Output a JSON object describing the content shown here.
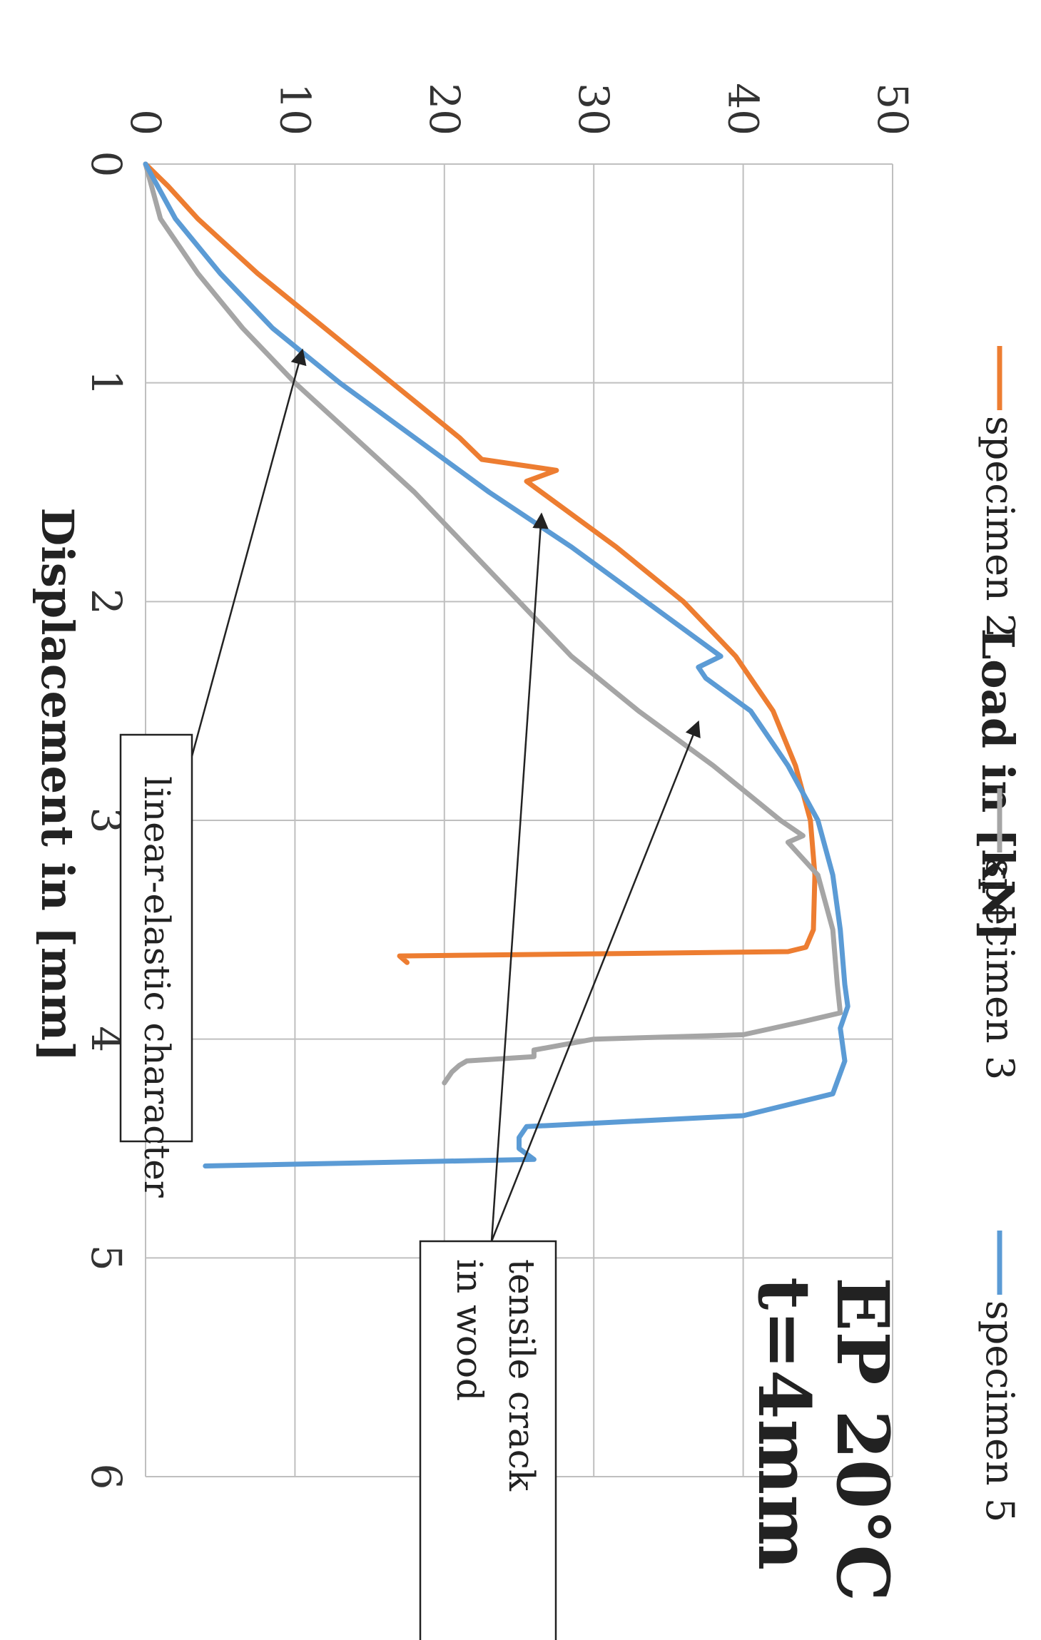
{
  "chart_data": {
    "type": "line",
    "title": "EP 20°C",
    "subtitle": "t=4mm",
    "xlabel": "Displacement in [mm]",
    "ylabel": "Load in [kN]",
    "xlim": [
      0,
      6
    ],
    "ylim": [
      0,
      50
    ],
    "x_ticks": [
      "0",
      "1",
      "2",
      "3",
      "4",
      "5",
      "6"
    ],
    "y_ticks": [
      "0",
      "10",
      "20",
      "30",
      "40",
      "50"
    ],
    "grid": true,
    "legend_position": "top",
    "series": [
      {
        "name": "specimen 2",
        "color": "#ED7D31",
        "x": [
          0,
          0.1,
          0.25,
          0.5,
          0.75,
          1.0,
          1.25,
          1.35,
          1.4,
          1.45,
          1.5,
          1.75,
          2.0,
          2.25,
          2.5,
          2.75,
          3.0,
          3.25,
          3.5,
          3.58,
          3.6,
          3.61,
          3.62,
          3.65
        ],
        "values": [
          0,
          1.5,
          3.5,
          7.5,
          12,
          16.5,
          21,
          22.5,
          27.5,
          25.5,
          26.5,
          31.5,
          36,
          39.5,
          42,
          43.5,
          44.5,
          44.8,
          44.7,
          44.2,
          43,
          30,
          17,
          17.5
        ]
      },
      {
        "name": "specimen 3",
        "color": "#A5A5A5",
        "x": [
          0,
          0.25,
          0.5,
          0.75,
          1.0,
          1.25,
          1.5,
          1.75,
          2.0,
          2.25,
          2.5,
          2.75,
          3.0,
          3.07,
          3.1,
          3.25,
          3.5,
          3.75,
          3.88,
          3.92,
          3.98,
          4.0,
          4.05,
          4.08,
          4.1,
          4.12,
          4.15,
          4.2
        ],
        "values": [
          0,
          1,
          3.5,
          6.5,
          10,
          14,
          18,
          21.5,
          25,
          28.5,
          33,
          38,
          42.5,
          44,
          43,
          45,
          46,
          46.3,
          46.5,
          44,
          40,
          30,
          26,
          26,
          21.5,
          21,
          20.5,
          20
        ]
      },
      {
        "name": "specimen 5",
        "color": "#5B9BD5",
        "x": [
          0,
          0.25,
          0.5,
          0.75,
          1.0,
          1.25,
          1.5,
          1.75,
          2.0,
          2.25,
          2.3,
          2.35,
          2.5,
          2.75,
          3.0,
          3.25,
          3.5,
          3.75,
          3.85,
          3.95,
          4.1,
          4.25,
          4.35,
          4.4,
          4.45,
          4.5,
          4.55,
          4.58
        ],
        "values": [
          0,
          2,
          5,
          8.5,
          13,
          18,
          23,
          28.5,
          33.5,
          38.5,
          37,
          37.5,
          40.5,
          43,
          45,
          46,
          46.5,
          46.8,
          47,
          46.5,
          46.8,
          46,
          40,
          25.5,
          25,
          25,
          26,
          4
        ]
      }
    ],
    "annotations": [
      {
        "label": "linear-elastic character",
        "points_to": [
          {
            "x": 0.85,
            "y": 10.5
          }
        ]
      },
      {
        "label_line1": "tensile crack",
        "label_line2": "in wood",
        "points_to": [
          {
            "x": 1.6,
            "y": 26.5
          },
          {
            "x": 2.55,
            "y": 37
          }
        ]
      }
    ]
  }
}
